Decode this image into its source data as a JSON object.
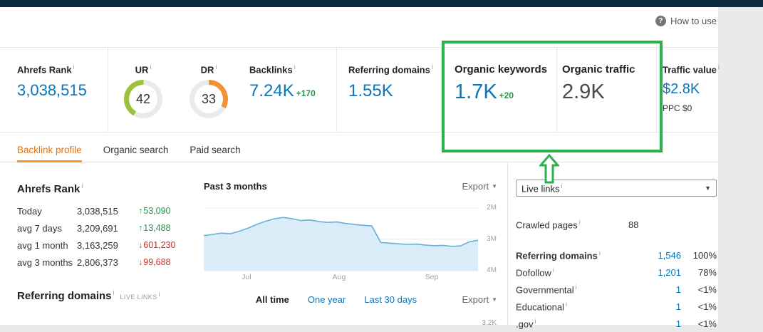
{
  "header": {
    "help_icon": "?",
    "how_to_use": "How to use"
  },
  "icons": {
    "info": "i",
    "caret_down": "▼",
    "arrow_up": "↑",
    "arrow_down": "↓"
  },
  "colors": {
    "topbar_navy": "#0a2a3e",
    "accent_blue": "#0a76bc",
    "highlight_green": "#2bb24c",
    "active_tab_orange": "#e8710a",
    "delta_green": "#1e9b4d",
    "delta_red": "#cc2f2f",
    "ur_arc_green": "#9cc23b",
    "dr_arc_orange": "#f29135",
    "chart_line_blue": "#63b2dc",
    "chart_fill_blue": "#d9ecf7"
  },
  "metrics": {
    "ahrefs_rank": {
      "label": "Ahrefs Rank",
      "value": "3,038,515"
    },
    "ur": {
      "label": "UR",
      "value": "42"
    },
    "dr": {
      "label": "DR",
      "value": "33"
    },
    "backlinks": {
      "label": "Backlinks",
      "value": "7.24K",
      "delta": "+170"
    },
    "referring_domains": {
      "label": "Referring domains",
      "value": "1.55K"
    },
    "organic_keywords": {
      "label": "Organic keywords",
      "value": "1.7K",
      "delta": "+20"
    },
    "organic_traffic": {
      "label": "Organic traffic",
      "value": "2.9K"
    },
    "traffic_value": {
      "label": "Traffic value",
      "value": "$2.8K",
      "sub": "PPC $0"
    }
  },
  "tabs": [
    {
      "label": "Backlink profile",
      "active": true
    },
    {
      "label": "Organic search",
      "active": false
    },
    {
      "label": "Paid search",
      "active": false
    }
  ],
  "rank_panel": {
    "title": "Ahrefs Rank",
    "rows": [
      {
        "label": "Today",
        "value": "3,038,515",
        "delta": "53,090",
        "direction": "up"
      },
      {
        "label": "avg 7 days",
        "value": "3,209,691",
        "delta": "13,488",
        "direction": "up"
      },
      {
        "label": "avg 1 month",
        "value": "3,163,259",
        "delta": "601,230",
        "direction": "down"
      },
      {
        "label": "avg 3 months",
        "value": "2,806,373",
        "delta": "99,688",
        "direction": "down"
      }
    ]
  },
  "referring_domains_section": {
    "title": "Referring domains",
    "caption": "LIVE LINKS"
  },
  "chart": {
    "range_label": "Past 3 months",
    "export_label": "Export",
    "time_filters": [
      {
        "label": "All time",
        "active": true
      },
      {
        "label": "One year",
        "active": false
      },
      {
        "label": "Last 30 days",
        "active": false
      }
    ],
    "next_chart_axis_fragment": "3.2K"
  },
  "chart_data": {
    "type": "area",
    "title": "Ahrefs Rank — Past 3 months",
    "series_name": "Ahrefs Rank",
    "x_ticks": [
      "Jul",
      "Aug",
      "Sep"
    ],
    "y_ticks": [
      "2M",
      "3M",
      "4M"
    ],
    "y_axis": "Ahrefs Rank (axis inverted: 2M top, 4M bottom)",
    "ylim_millions": [
      2,
      4
    ],
    "grid": "horizontal",
    "legend": "none",
    "values_millions": [
      2.88,
      2.84,
      2.8,
      2.82,
      2.74,
      2.64,
      2.52,
      2.42,
      2.34,
      2.3,
      2.34,
      2.4,
      2.38,
      2.43,
      2.46,
      2.44,
      2.49,
      2.52,
      2.55,
      2.57,
      3.1,
      3.12,
      3.14,
      3.16,
      3.15,
      3.18,
      3.2,
      3.19,
      3.22,
      3.21,
      3.08,
      3.03
    ]
  },
  "right_panel": {
    "live_links_label": "Live links",
    "crawled_pages": {
      "label": "Crawled pages",
      "value": "88"
    },
    "rows": [
      {
        "label": "Referring domains",
        "value": "1,546",
        "pct": "100%"
      },
      {
        "label": "Dofollow",
        "value": "1,201",
        "pct": "78%"
      },
      {
        "label": "Governmental",
        "value": "1",
        "pct": "<1%"
      },
      {
        "label": "Educational",
        "value": "1",
        "pct": "<1%"
      },
      {
        "label": ".gov",
        "value": "1",
        "pct": "<1%"
      }
    ]
  }
}
